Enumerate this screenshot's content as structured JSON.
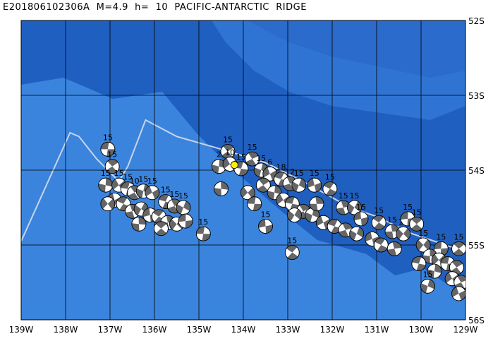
{
  "title": "E201806102306A  M=4.9  h=  10  PACIFIC-ANTARCTIC  RIDGE",
  "map": {
    "lon_range": [
      -139,
      -129
    ],
    "lat_range": [
      -56,
      -52
    ],
    "x_ticks": [
      "139W",
      "138W",
      "137W",
      "136W",
      "135W",
      "134W",
      "133W",
      "132W",
      "131W",
      "130W",
      "129W"
    ],
    "y_ticks": [
      "52S",
      "53S",
      "54S",
      "55S",
      "56S"
    ],
    "colors": {
      "ocean_deep": "#1f5fc0",
      "ocean_shallow": "#3a84dd",
      "ridge_band": "#2f74d2",
      "fault_line": "#c8d4e8",
      "grid": "#000000",
      "highlight": "#ffee00"
    },
    "fault_trace": [
      [
        -139.0,
        -54.95
      ],
      [
        -137.9,
        -53.5
      ],
      [
        -137.7,
        -53.55
      ],
      [
        -137.3,
        -53.85
      ],
      [
        -136.8,
        -54.15
      ],
      [
        -136.6,
        -53.95
      ],
      [
        -136.2,
        -53.33
      ],
      [
        -135.5,
        -53.55
      ],
      [
        -134.5,
        -53.72
      ],
      [
        -133.5,
        -53.9
      ],
      [
        -132.5,
        -54.2
      ],
      [
        -131.6,
        -54.5
      ],
      [
        -131.0,
        -54.62
      ],
      [
        -130.2,
        -54.85
      ],
      [
        -129.2,
        -55.05
      ]
    ],
    "main_event": {
      "lon": -134.2,
      "lat": -53.93
    },
    "mechanisms": [
      {
        "lon": -137.05,
        "lat": -53.72,
        "label": "15"
      },
      {
        "lon": -136.95,
        "lat": -53.95,
        "label": "15"
      },
      {
        "lon": -137.1,
        "lat": -54.2,
        "label": "15"
      },
      {
        "lon": -136.8,
        "lat": -54.2,
        "label": "15"
      },
      {
        "lon": -136.6,
        "lat": -54.25,
        "label": "15"
      },
      {
        "lon": -136.45,
        "lat": -54.3,
        "label": "10"
      },
      {
        "lon": -136.25,
        "lat": -54.28,
        "label": "15"
      },
      {
        "lon": -136.05,
        "lat": -54.3,
        "label": "15"
      },
      {
        "lon": -135.75,
        "lat": -54.42,
        "label": "15"
      },
      {
        "lon": -135.55,
        "lat": -54.48,
        "label": "15"
      },
      {
        "lon": -135.35,
        "lat": -54.5,
        "label": "15"
      },
      {
        "lon": -136.9,
        "lat": -54.4,
        "label": ""
      },
      {
        "lon": -136.7,
        "lat": -54.45,
        "label": ""
      },
      {
        "lon": -136.5,
        "lat": -54.55,
        "label": ""
      },
      {
        "lon": -136.3,
        "lat": -54.52,
        "label": ""
      },
      {
        "lon": -136.1,
        "lat": -54.6,
        "label": ""
      },
      {
        "lon": -135.9,
        "lat": -54.62,
        "label": ""
      },
      {
        "lon": -135.7,
        "lat": -54.7,
        "label": ""
      },
      {
        "lon": -135.5,
        "lat": -54.72,
        "label": ""
      },
      {
        "lon": -135.3,
        "lat": -54.68,
        "label": ""
      },
      {
        "lon": -135.85,
        "lat": -54.78,
        "label": ""
      },
      {
        "lon": -136.35,
        "lat": -54.72,
        "label": ""
      },
      {
        "lon": -137.05,
        "lat": -54.45,
        "label": ""
      },
      {
        "lon": -134.9,
        "lat": -54.85,
        "label": "15"
      },
      {
        "lon": -134.35,
        "lat": -53.75,
        "label": "15"
      },
      {
        "lon": -134.55,
        "lat": -53.95,
        "label": "2"
      },
      {
        "lon": -134.3,
        "lat": -53.92,
        "label": "10"
      },
      {
        "lon": -134.05,
        "lat": -53.98,
        "label": "15"
      },
      {
        "lon": -133.8,
        "lat": -53.85,
        "label": "15"
      },
      {
        "lon": -133.6,
        "lat": -54.0,
        "label": "15"
      },
      {
        "lon": -133.4,
        "lat": -54.05,
        "label": "6"
      },
      {
        "lon": -133.15,
        "lat": -54.12,
        "label": "18"
      },
      {
        "lon": -132.95,
        "lat": -54.18,
        "label": "12"
      },
      {
        "lon": -132.75,
        "lat": -54.2,
        "label": "15"
      },
      {
        "lon": -132.4,
        "lat": -54.2,
        "label": "15"
      },
      {
        "lon": -132.05,
        "lat": -54.25,
        "label": "15"
      },
      {
        "lon": -131.75,
        "lat": -54.5,
        "label": "15"
      },
      {
        "lon": -131.5,
        "lat": -54.5,
        "label": "15"
      },
      {
        "lon": -131.35,
        "lat": -54.65,
        "label": "15"
      },
      {
        "lon": -130.95,
        "lat": -54.7,
        "label": "15"
      },
      {
        "lon": -130.65,
        "lat": -54.82,
        "label": "15"
      },
      {
        "lon": -130.4,
        "lat": -54.85,
        "label": "15"
      },
      {
        "lon": -130.3,
        "lat": -54.65,
        "label": "15"
      },
      {
        "lon": -130.1,
        "lat": -54.72,
        "label": "15"
      },
      {
        "lon": -134.5,
        "lat": -54.25,
        "label": ""
      },
      {
        "lon": -133.9,
        "lat": -54.3,
        "label": ""
      },
      {
        "lon": -133.75,
        "lat": -54.45,
        "label": ""
      },
      {
        "lon": -133.55,
        "lat": -54.2,
        "label": ""
      },
      {
        "lon": -133.3,
        "lat": -54.3,
        "label": ""
      },
      {
        "lon": -133.1,
        "lat": -54.4,
        "label": ""
      },
      {
        "lon": -132.9,
        "lat": -54.45,
        "label": ""
      },
      {
        "lon": -132.65,
        "lat": -54.55,
        "label": ""
      },
      {
        "lon": -132.45,
        "lat": -54.6,
        "label": ""
      },
      {
        "lon": -132.2,
        "lat": -54.7,
        "label": ""
      },
      {
        "lon": -131.95,
        "lat": -54.75,
        "label": ""
      },
      {
        "lon": -131.7,
        "lat": -54.8,
        "label": ""
      },
      {
        "lon": -131.45,
        "lat": -54.85,
        "label": ""
      },
      {
        "lon": -131.1,
        "lat": -54.92,
        "label": ""
      },
      {
        "lon": -130.9,
        "lat": -55.0,
        "label": ""
      },
      {
        "lon": -130.6,
        "lat": -55.05,
        "label": ""
      },
      {
        "lon": -132.85,
        "lat": -54.6,
        "label": ""
      },
      {
        "lon": -133.5,
        "lat": -54.75,
        "label": "15"
      },
      {
        "lon": -132.9,
        "lat": -55.1,
        "label": "15"
      },
      {
        "lon": -132.35,
        "lat": -54.45,
        "label": ""
      },
      {
        "lon": -129.95,
        "lat": -55.0,
        "label": "15"
      },
      {
        "lon": -129.55,
        "lat": -55.05,
        "label": "15"
      },
      {
        "lon": -129.15,
        "lat": -55.05,
        "label": "15"
      },
      {
        "lon": -129.8,
        "lat": -55.15,
        "label": ""
      },
      {
        "lon": -129.6,
        "lat": -55.2,
        "label": ""
      },
      {
        "lon": -129.4,
        "lat": -55.25,
        "label": ""
      },
      {
        "lon": -129.2,
        "lat": -55.3,
        "label": ""
      },
      {
        "lon": -129.7,
        "lat": -55.35,
        "label": ""
      },
      {
        "lon": -129.3,
        "lat": -55.45,
        "label": ""
      },
      {
        "lon": -130.05,
        "lat": -55.25,
        "label": ""
      },
      {
        "lon": -129.1,
        "lat": -55.5,
        "label": ""
      },
      {
        "lon": -129.85,
        "lat": -55.55,
        "label": "15"
      },
      {
        "lon": -129.15,
        "lat": -55.65,
        "label": ""
      }
    ]
  }
}
